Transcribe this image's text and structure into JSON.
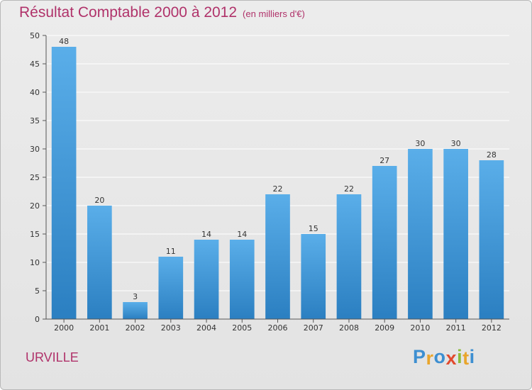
{
  "chart_data": {
    "type": "bar",
    "title": "Résultat Comptable 2000 à 2012",
    "subtitle": "(en milliers d'€)",
    "categories": [
      "2000",
      "2001",
      "2002",
      "2003",
      "2004",
      "2005",
      "2006",
      "2007",
      "2008",
      "2009",
      "2010",
      "2011",
      "2012"
    ],
    "values": [
      48,
      20,
      3,
      11,
      14,
      14,
      22,
      15,
      22,
      27,
      30,
      30,
      28
    ],
    "ylim": [
      0,
      50
    ],
    "yticks": [
      0,
      5,
      10,
      15,
      20,
      25,
      30,
      35,
      40,
      45,
      50
    ],
    "grid": true,
    "colors": {
      "bar_top": "#5aaee9",
      "bar_bottom": "#2b7fc1",
      "grid": "#ffffff",
      "title": "#b0326a"
    }
  },
  "footer": {
    "place": "URVILLE",
    "brand_letters": [
      "P",
      "r",
      "o",
      "x",
      "i",
      "t",
      "i"
    ],
    "brand_colors": [
      "#3d8fd1",
      "#e9a52c",
      "#3d8fd1",
      "#e24a2e",
      "#8cbc3a",
      "#e9a52c",
      "#3d8fd1"
    ]
  }
}
